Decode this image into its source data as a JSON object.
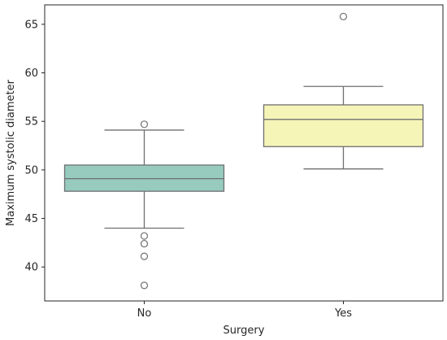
{
  "chart_data": {
    "type": "box",
    "title": "",
    "xlabel": "Surgery",
    "ylabel": "Maximum systolic diameter",
    "ylim": [
      36.5,
      67.0
    ],
    "yticks": [
      40,
      45,
      50,
      55,
      60,
      65
    ],
    "ytick_labels": [
      "40",
      "45",
      "50",
      "55",
      "60",
      "65"
    ],
    "categories": [
      "No",
      "Yes"
    ],
    "grid": false,
    "boxes": [
      {
        "category": "No",
        "color": "#96cbbd",
        "whisker_low": 44.0,
        "q1": 47.8,
        "median": 49.1,
        "q3": 50.5,
        "whisker_high": 54.1,
        "outliers": [
          54.7,
          43.2,
          42.4,
          41.1,
          38.1
        ]
      },
      {
        "category": "Yes",
        "color": "#f6f5b8",
        "whisker_low": 50.1,
        "q1": 52.4,
        "median": 55.2,
        "q3": 56.7,
        "whisker_high": 58.6,
        "outliers": [
          65.8
        ]
      }
    ]
  }
}
